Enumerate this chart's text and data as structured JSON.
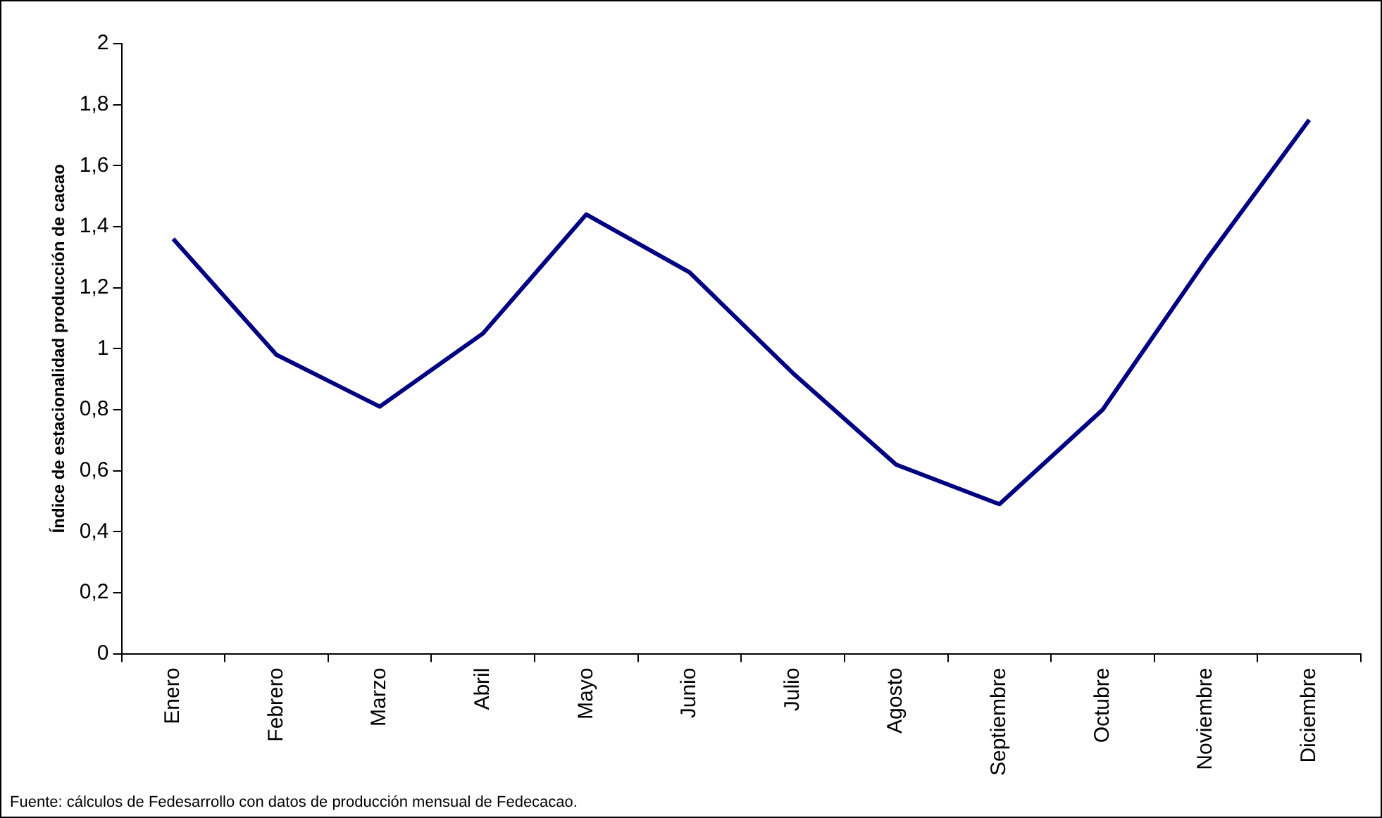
{
  "chart_data": {
    "type": "line",
    "ylabel": "Índice de estacionalidad producción de cacao",
    "categories": [
      "Enero",
      "Febrero",
      "Marzo",
      "Abril",
      "Mayo",
      "Junio",
      "Julio",
      "Agosto",
      "Septiembre",
      "Octubre",
      "Noviembre",
      "Diciembre"
    ],
    "series": [
      {
        "color": "#000080",
        "values": [
          1.36,
          0.98,
          0.81,
          1.05,
          1.44,
          1.25,
          0.92,
          0.62,
          0.49,
          0.8,
          1.29,
          1.75
        ]
      }
    ],
    "ylim": [
      0,
      2
    ],
    "yticks": [
      0,
      {
        "value": 0.2,
        "label": "0,2"
      },
      {
        "value": 0.4,
        "label": "0,4"
      },
      {
        "value": 0.6,
        "label": "0,6"
      },
      {
        "value": 0.8,
        "label": "0,8"
      },
      1,
      {
        "value": 1.2,
        "label": "1,2"
      },
      {
        "value": 1.4,
        "label": "1,4"
      },
      {
        "value": 1.6,
        "label": "1,6"
      },
      {
        "value": 1.8,
        "label": "1,8"
      },
      2
    ],
    "grid": false,
    "legend": false,
    "marker": "none",
    "line_style": "solid",
    "annotations": [
      "Fuente: cálculos de Fedesarrollo con datos de producción mensual de Fedecacao."
    ]
  }
}
